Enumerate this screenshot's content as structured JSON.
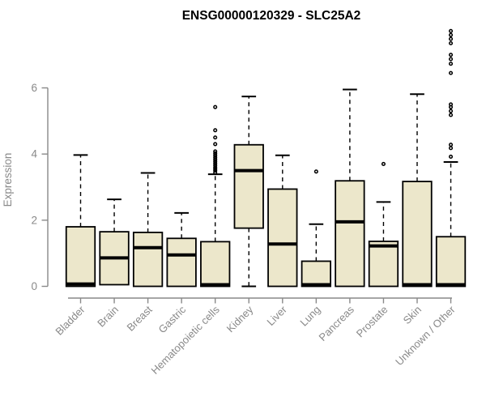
{
  "colors": {
    "background": "#ffffff",
    "box_fill": "#ECE7CB",
    "box_stroke": "#000000",
    "median": "#000000",
    "whisker": "#000000",
    "outlier": "#000000",
    "axis": "#898989",
    "tick_label": "#898989",
    "category_label": "#898989",
    "title": "#000000"
  },
  "chart_data": {
    "type": "boxplot",
    "title": "ENSG00000120329 - SLC25A2",
    "ylabel": "Expression",
    "xlabel": "",
    "ylim": [
      0,
      6
    ],
    "yticks": [
      0,
      2,
      4,
      6
    ],
    "grid": false,
    "legend": "none",
    "categories": [
      "Bladder",
      "Brain",
      "Breast",
      "Gastric",
      "Hematopoietic cells",
      "Kidney",
      "Liver",
      "Lung",
      "Pancreas",
      "Prostate",
      "Skin",
      "Unknown / Other"
    ],
    "boxes": [
      {
        "category": "Bladder",
        "whisker_low": 0,
        "q1": 0,
        "median": 0.07,
        "q3": 1.8,
        "whisker_high": 3.97,
        "outliers": []
      },
      {
        "category": "Brain",
        "whisker_low": 0.05,
        "q1": 0.05,
        "median": 0.86,
        "q3": 1.65,
        "whisker_high": 2.63,
        "outliers": []
      },
      {
        "category": "Breast",
        "whisker_low": 0,
        "q1": 0,
        "median": 1.17,
        "q3": 1.63,
        "whisker_high": 3.43,
        "outliers": []
      },
      {
        "category": "Gastric",
        "whisker_low": 0,
        "q1": 0,
        "median": 0.95,
        "q3": 1.45,
        "whisker_high": 2.22,
        "outliers": []
      },
      {
        "category": "Hematopoietic cells",
        "whisker_low": 0,
        "q1": 0,
        "median": 0.05,
        "q3": 1.35,
        "whisker_high": 3.39,
        "outliers": [
          3.44,
          3.5,
          3.55,
          3.6,
          3.66,
          3.72,
          3.78,
          3.84,
          3.9,
          3.96,
          4.02,
          4.08,
          4.3,
          4.5,
          4.72,
          5.42
        ]
      },
      {
        "category": "Kidney",
        "whisker_low": 0,
        "q1": 1.76,
        "median": 3.5,
        "q3": 4.28,
        "whisker_high": 5.74,
        "outliers": []
      },
      {
        "category": "Liver",
        "whisker_low": 0,
        "q1": 0,
        "median": 1.28,
        "q3": 2.94,
        "whisker_high": 3.96,
        "outliers": []
      },
      {
        "category": "Lung",
        "whisker_low": 0,
        "q1": 0,
        "median": 0.05,
        "q3": 0.76,
        "whisker_high": 1.88,
        "outliers": [
          3.47
        ]
      },
      {
        "category": "Pancreas",
        "whisker_low": 0,
        "q1": 0,
        "median": 1.95,
        "q3": 3.19,
        "whisker_high": 5.95,
        "outliers": []
      },
      {
        "category": "Prostate",
        "whisker_low": 0,
        "q1": 0,
        "median": 1.22,
        "q3": 1.36,
        "whisker_high": 2.55,
        "outliers": [
          3.7
        ]
      },
      {
        "category": "Skin",
        "whisker_low": 0,
        "q1": 0,
        "median": 0.05,
        "q3": 3.17,
        "whisker_high": 5.81,
        "outliers": []
      },
      {
        "category": "Unknown / Other",
        "whisker_low": 0,
        "q1": 0,
        "median": 0.05,
        "q3": 1.5,
        "whisker_high": 3.76,
        "outliers": [
          3.92,
          4.18,
          4.28,
          5.18,
          5.3,
          5.42,
          5.5,
          6.45,
          6.73,
          6.87,
          7.0,
          7.35,
          7.48,
          7.6,
          7.72
        ]
      }
    ]
  }
}
